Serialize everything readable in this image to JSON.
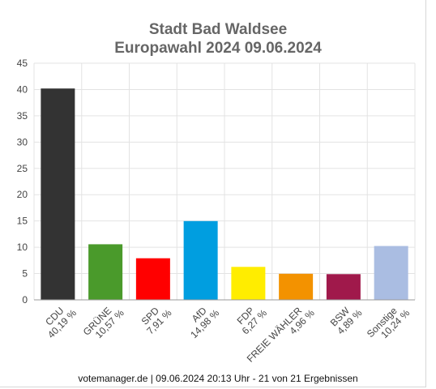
{
  "page": {
    "title_line1": "Stadt Bad Waldsee",
    "title_line2": "Europawahl 2024 09.06.2024",
    "footer": "votemanager.de | 09.06.2024 20:13 Uhr - 21 von 21 Ergebnissen"
  },
  "chart_data": {
    "type": "bar",
    "title": "Stadt Bad Waldsee\nEuropawahl 2024 09.06.2024",
    "xlabel": "",
    "ylabel": "",
    "ylim": [
      0,
      45
    ],
    "yticks": [
      0,
      5,
      10,
      15,
      20,
      25,
      30,
      35,
      40,
      45
    ],
    "grid": true,
    "categories": [
      "CDU",
      "GRÜNE",
      "SPD",
      "AfD",
      "FDP",
      "FREIE WÄHLER",
      "BSW",
      "Sonstige"
    ],
    "values": [
      40.19,
      10.57,
      7.91,
      14.98,
      6.27,
      4.96,
      4.89,
      10.24
    ],
    "value_labels": [
      "40,19 %",
      "10,57 %",
      "7,91 %",
      "14,98 %",
      "6,27 %",
      "4,96 %",
      "4,89 %",
      "10,24 %"
    ],
    "colors": [
      "#333333",
      "#4a9a2b",
      "#ff0000",
      "#009ee0",
      "#ffed00",
      "#f39200",
      "#a0194b",
      "#aabde2"
    ]
  }
}
